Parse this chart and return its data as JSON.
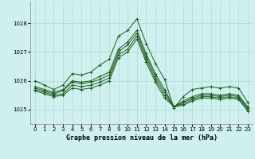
{
  "title": "Graphe pression niveau de la mer (hPa)",
  "bg_color": "#cff0ee",
  "grid_color": "#b8dbd8",
  "line_color": "#1e5c1e",
  "xlim": [
    -0.5,
    23.5
  ],
  "ylim": [
    1024.5,
    1028.75
  ],
  "yticks": [
    1025,
    1026,
    1027,
    1028
  ],
  "xticks": [
    0,
    1,
    2,
    3,
    4,
    5,
    6,
    7,
    8,
    9,
    10,
    11,
    12,
    13,
    14,
    15,
    16,
    17,
    18,
    19,
    20,
    21,
    22,
    23
  ],
  "series": [
    [
      1026.0,
      1025.85,
      1025.7,
      1025.85,
      1026.25,
      1026.2,
      1026.3,
      1026.55,
      1026.75,
      1027.55,
      1027.75,
      1028.15,
      1027.3,
      1026.6,
      1026.05,
      1025.05,
      1025.45,
      1025.7,
      1025.75,
      1025.8,
      1025.75,
      1025.8,
      1025.75,
      1025.25
    ],
    [
      1025.8,
      1025.7,
      1025.6,
      1025.7,
      1026.0,
      1025.95,
      1026.0,
      1026.15,
      1026.3,
      1027.1,
      1027.35,
      1027.75,
      1026.95,
      1026.25,
      1025.7,
      1025.1,
      1025.3,
      1025.45,
      1025.55,
      1025.55,
      1025.5,
      1025.55,
      1025.5,
      1025.1
    ],
    [
      1025.75,
      1025.65,
      1025.55,
      1025.65,
      1025.95,
      1025.9,
      1025.95,
      1026.05,
      1026.2,
      1027.0,
      1027.25,
      1027.65,
      1026.85,
      1026.15,
      1025.6,
      1025.1,
      1025.25,
      1025.4,
      1025.5,
      1025.5,
      1025.45,
      1025.5,
      1025.45,
      1025.05
    ],
    [
      1025.7,
      1025.6,
      1025.5,
      1025.55,
      1025.85,
      1025.8,
      1025.85,
      1025.95,
      1026.1,
      1026.9,
      1027.1,
      1027.55,
      1026.75,
      1026.05,
      1025.5,
      1025.1,
      1025.2,
      1025.35,
      1025.45,
      1025.45,
      1025.4,
      1025.45,
      1025.4,
      1025.0
    ],
    [
      1025.65,
      1025.55,
      1025.45,
      1025.5,
      1025.75,
      1025.7,
      1025.75,
      1025.85,
      1026.0,
      1026.8,
      1027.0,
      1027.45,
      1026.65,
      1025.95,
      1025.4,
      1025.1,
      1025.15,
      1025.3,
      1025.4,
      1025.4,
      1025.35,
      1025.4,
      1025.35,
      1024.95
    ]
  ]
}
